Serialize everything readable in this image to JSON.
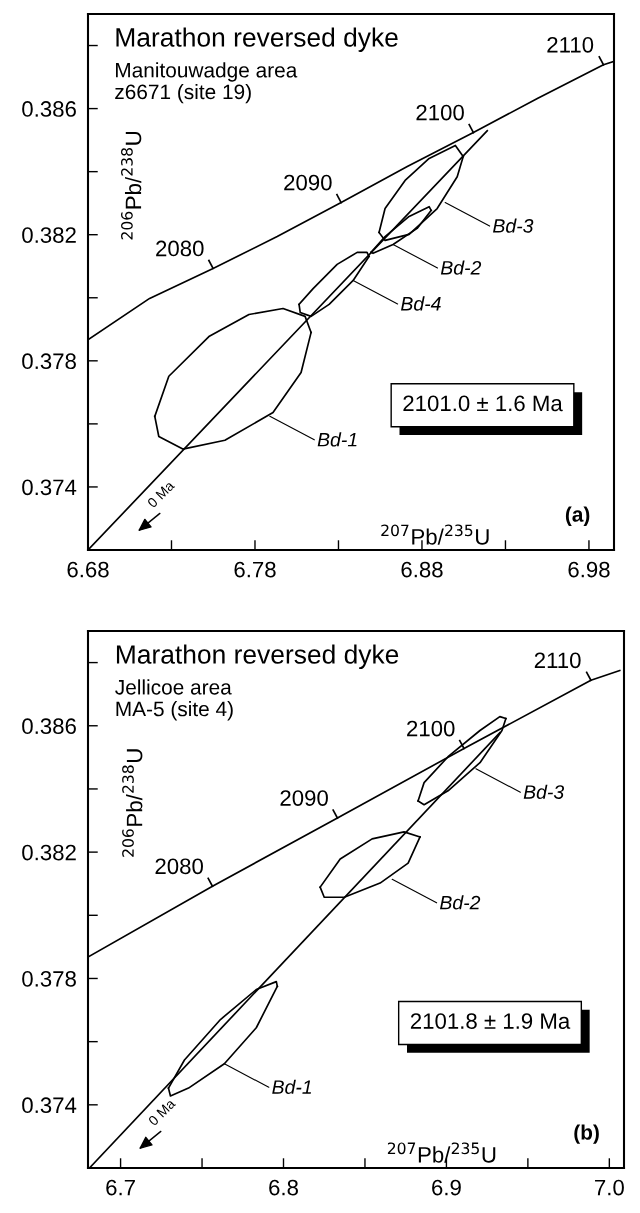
{
  "chart_data": [
    {
      "type": "line",
      "title": "Marathon reversed dyke",
      "subtitle": "Manitouwadge area\nz6671 (site 19)",
      "xlabel": "$^{207}$Pb/$^{235}$U",
      "ylabel": "$^{206}$Pb/$^{238}$U",
      "xlim": [
        6.68,
        6.995
      ],
      "ylim": [
        0.372,
        0.389
      ],
      "xticks": [
        6.68,
        {
          "value": 6.73,
          "label": null
        },
        6.78,
        {
          "value": 6.83,
          "label": null
        },
        6.88,
        {
          "value": 6.93,
          "label": null
        },
        6.98
      ],
      "yticks": [
        0.374,
        {
          "value": 0.376,
          "label": null
        },
        0.378,
        {
          "value": 0.38,
          "label": null
        },
        0.382,
        {
          "value": 0.384,
          "label": null
        },
        0.386,
        {
          "value": 0.388,
          "label": null
        }
      ],
      "grid": false,
      "marker": "none",
      "line_style": "solid",
      "series": [
        {
          "color": "#000000",
          "x": [
            6.68,
            6.7169,
            6.7549,
            6.7933,
            6.8316,
            6.8712,
            6.9108,
            6.9491,
            6.9887,
            6.995
          ],
          "values": [
            0.37867,
            0.37998,
            0.38093,
            0.38194,
            0.38302,
            0.38416,
            0.38524,
            0.38632,
            0.38739,
            0.3875
          ]
        },
        {
          "color": "#000000",
          "x": [
            6.68,
            6.9191
          ],
          "values": [
            0.372,
            0.3853
          ]
        },
        {
          "color": "#000000",
          "x": [
            6.72,
            6.7224,
            6.7368,
            6.762,
            6.7908,
            6.8076,
            6.8136
          ],
          "values": [
            0.37624,
            0.3756,
            0.3752,
            0.37548,
            0.37636,
            0.37763,
            0.3789
          ]
        },
        {
          "color": "#000000",
          "x": [
            6.72,
            6.7284,
            6.7524,
            6.7764,
            6.7968,
            6.81,
            6.8136
          ],
          "values": [
            0.37624,
            0.37751,
            0.37877,
            0.37947,
            0.37966,
            0.37941,
            0.3789
          ]
        },
        {
          "color": "#000000",
          "x": [
            6.8064,
            6.8071,
            6.8136,
            6.8244,
            6.8388,
            6.8483
          ],
          "values": [
            0.37979,
            0.37953,
            0.37941,
            0.37979,
            0.38055,
            0.38131
          ]
        },
        {
          "color": "#000000",
          "x": [
            6.8064,
            6.8148,
            6.8292,
            6.8412,
            6.8471,
            6.8483
          ],
          "values": [
            0.37979,
            0.38029,
            0.38106,
            0.38144,
            0.38144,
            0.38131
          ]
        },
        {
          "color": "#000000",
          "x": [
            6.8495,
            6.8579,
            6.8723,
            6.8843,
            6.8855
          ],
          "values": [
            0.38144,
            0.38194,
            0.38258,
            0.38289,
            0.38277
          ]
        },
        {
          "color": "#000000",
          "x": [
            6.8495,
            6.8507,
            6.8627,
            6.8771,
            6.8855
          ],
          "values": [
            0.38144,
            0.38141,
            0.38169,
            0.3822,
            0.38277
          ]
        },
        {
          "color": "#000000",
          "x": [
            6.8543,
            6.8579,
            6.8723,
            6.8891,
            6.9011,
            6.9047
          ],
          "values": [
            0.38207,
            0.38182,
            0.38201,
            0.38283,
            0.38384,
            0.38448
          ]
        },
        {
          "color": "#000000",
          "x": [
            6.8543,
            6.8579,
            6.8699,
            6.8843,
            6.9,
            6.9047
          ],
          "values": [
            0.38207,
            0.38283,
            0.38372,
            0.38442,
            0.38483,
            0.38448
          ]
        }
      ],
      "annotations": [
        "2101.0 ± 1.6 Ma",
        "(a)",
        "0 Ma",
        {
          "text": "Bd-1",
          "x": 6.7889,
          "y": 0.37624
        },
        {
          "text": "Bd-4",
          "x": 6.8388,
          "y": 0.38055
        },
        {
          "text": "Bd-2",
          "x": 6.8627,
          "y": 0.38169
        },
        {
          "text": "Bd-3",
          "x": 6.8939,
          "y": 0.38302
        },
        {
          "text": "2080",
          "x": 6.7549,
          "y": 0.38093
        },
        {
          "text": "2090",
          "x": 6.8316,
          "y": 0.38302
        },
        {
          "text": "2100",
          "x": 6.9108,
          "y": 0.38524
        },
        {
          "text": "2110",
          "x": 6.9887,
          "y": 0.38739
        }
      ]
    },
    {
      "type": "line",
      "title": "Marathon reversed dyke",
      "subtitle": "Jellicoe area\nMA-5 (site 4)",
      "xlabel": "$^{207}$Pb/$^{235}$U",
      "ylabel": "$^{206}$Pb/$^{238}$U",
      "xlim": [
        6.68,
        7.009
      ],
      "ylim": [
        0.372,
        0.389
      ],
      "xticks": [
        6.7,
        {
          "value": 6.75,
          "label": null
        },
        6.8,
        {
          "value": 6.85,
          "label": null
        },
        6.9,
        {
          "value": 6.95,
          "label": null
        },
        {
          "value": 7.0,
          "label": "7.0"
        }
      ],
      "yticks": [
        0.374,
        {
          "value": 0.376,
          "label": null
        },
        0.378,
        {
          "value": 0.38,
          "label": null
        },
        0.382,
        {
          "value": 0.384,
          "label": null
        },
        0.386,
        {
          "value": 0.388,
          "label": null
        }
      ],
      "grid": false,
      "marker": "none",
      "line_style": "solid",
      "series": [
        {
          "color": "#000000",
          "x": [
            6.6804,
            6.7564,
            6.8331,
            6.9108,
            6.9887,
            7.0064
          ],
          "values": [
            0.37869,
            0.38092,
            0.38308,
            0.38528,
            0.38744,
            0.38775
          ]
        },
        {
          "color": "#000000",
          "x": [
            6.6809,
            6.9328
          ],
          "values": [
            0.372,
            0.38578
          ]
        },
        {
          "color": "#000000",
          "x": [
            6.7294,
            6.7306,
            6.7417,
            6.7637,
            6.7833,
            6.7962
          ],
          "values": [
            0.37453,
            0.37428,
            0.37453,
            0.3753,
            0.37644,
            0.37775
          ]
        },
        {
          "color": "#000000",
          "x": [
            6.7294,
            6.7392,
            6.7613,
            6.7833,
            6.7956,
            6.7962
          ],
          "values": [
            0.37453,
            0.37542,
            0.3767,
            0.37765,
            0.3779,
            0.37775
          ]
        },
        {
          "color": "#000000",
          "x": [
            6.8225,
            6.825,
            6.8373,
            6.8593,
            6.8765,
            6.8838
          ],
          "values": [
            0.38089,
            0.38057,
            0.38057,
            0.38102,
            0.38165,
            0.38248
          ]
        },
        {
          "color": "#000000",
          "x": [
            6.8225,
            6.8348,
            6.8544,
            6.874,
            6.8838
          ],
          "values": [
            0.38089,
            0.38178,
            0.38242,
            0.38264,
            0.38248
          ]
        },
        {
          "color": "#000000",
          "x": [
            6.8826,
            6.8863,
            6.901,
            6.9206,
            6.9341,
            6.9365
          ],
          "values": [
            0.38362,
            0.3835,
            0.38394,
            0.38483,
            0.38585,
            0.38623
          ]
        },
        {
          "color": "#000000",
          "x": [
            6.8826,
            6.8863,
            6.901,
            6.9206,
            6.9328,
            6.9365
          ],
          "values": [
            0.38362,
            0.3842,
            0.38502,
            0.38585,
            0.38629,
            0.38623
          ]
        }
      ],
      "annotations": [
        "2101.8 ± 1.9 Ma",
        "(b)",
        "0 Ma",
        {
          "text": "Bd-1",
          "x": 6.7637,
          "y": 0.3753
        },
        {
          "text": "Bd-2",
          "x": 6.8667,
          "y": 0.38114
        },
        {
          "text": "Bd-3",
          "x": 6.9181,
          "y": 0.38464
        },
        {
          "text": "2080",
          "x": 6.7564,
          "y": 0.38092
        },
        {
          "text": "2090",
          "x": 6.8331,
          "y": 0.38308
        },
        {
          "text": "2100",
          "x": 6.9108,
          "y": 0.38528
        },
        {
          "text": "2110",
          "x": 6.9887,
          "y": 0.38744
        }
      ]
    }
  ]
}
